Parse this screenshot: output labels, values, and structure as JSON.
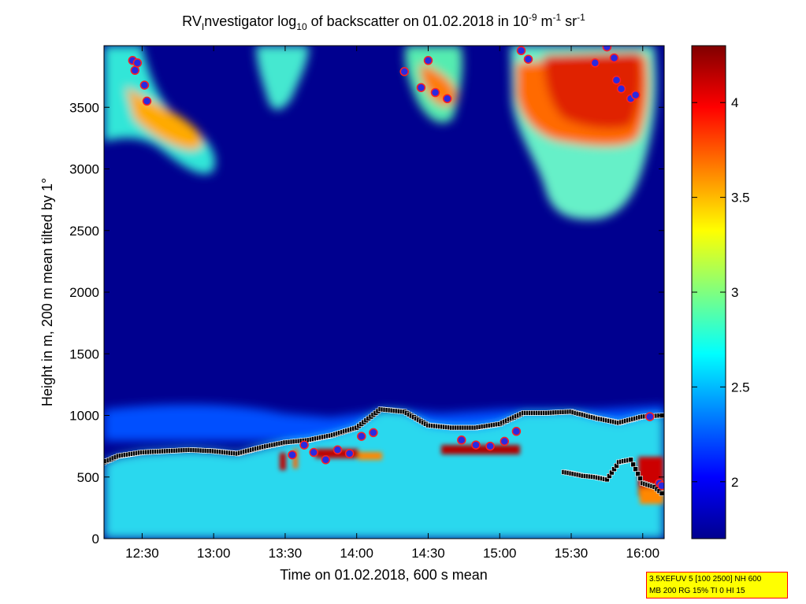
{
  "chart_data": {
    "type": "heatmap",
    "title": {
      "prefix": "RV",
      "sub_after_prefix": "I",
      "mid": "nvestigator log",
      "sub": "10",
      "rest": " of backscatter on 01.02.2018 in 10",
      "sup1": "-9",
      "unit1": " m",
      "sup2": "-1",
      "unit2": " sr",
      "sup3": "-1"
    },
    "xlabel": "Time on 01.02.2018, 600 s mean",
    "ylabel": "Height in m, 200 m mean tilted by 1°",
    "x_range": [
      "12:14",
      "16:09"
    ],
    "x_ticks": [
      "12:30",
      "13:00",
      "13:30",
      "14:00",
      "14:30",
      "15:00",
      "15:30",
      "16:00"
    ],
    "y_range": [
      0,
      4000
    ],
    "y_ticks": [
      0,
      500,
      1000,
      1500,
      2000,
      2500,
      3000,
      3500
    ],
    "colorbar": {
      "range": [
        1.7,
        4.3
      ],
      "ticks": [
        2,
        2.5,
        3,
        3.5,
        4
      ],
      "colormap": "jet"
    },
    "aerosol_layer_top": {
      "x": [
        "12:14",
        "12:20",
        "12:30",
        "12:40",
        "12:50",
        "13:00",
        "13:10",
        "13:20",
        "13:30",
        "13:40",
        "13:50",
        "14:00",
        "14:10",
        "14:20",
        "14:30",
        "14:40",
        "14:50",
        "15:00",
        "15:10",
        "15:20",
        "15:30",
        "15:40",
        "15:50",
        "16:00",
        "16:09"
      ],
      "y": [
        620,
        670,
        700,
        710,
        720,
        710,
        690,
        740,
        780,
        800,
        840,
        900,
        1050,
        1030,
        920,
        900,
        900,
        930,
        1020,
        1020,
        1030,
        980,
        940,
        990,
        1000
      ]
    },
    "lower_layer_marks": {
      "x": [
        "15:27",
        "15:30",
        "15:35",
        "15:40",
        "15:45",
        "15:50",
        "15:55",
        "16:00",
        "16:05",
        "16:09"
      ],
      "y": [
        540,
        530,
        510,
        500,
        480,
        620,
        640,
        450,
        420,
        350
      ]
    },
    "cloud_base_marks": {
      "x": [
        "12:26",
        "12:27",
        "12:28",
        "12:31",
        "12:32",
        "13:33",
        "13:38",
        "13:42",
        "13:47",
        "13:52",
        "13:57",
        "14:02",
        "14:07",
        "14:20",
        "14:27",
        "14:30",
        "14:33",
        "14:38",
        "14:44",
        "14:50",
        "14:56",
        "15:02",
        "15:07",
        "15:09",
        "15:12",
        "15:40",
        "15:45",
        "15:48",
        "15:49",
        "15:51",
        "15:55",
        "15:57",
        "16:03",
        "16:07",
        "16:08"
      ],
      "y": [
        3880,
        3800,
        3860,
        3680,
        3550,
        680,
        760,
        700,
        640,
        720,
        690,
        830,
        860,
        3790,
        3660,
        3880,
        3620,
        3570,
        800,
        760,
        750,
        790,
        870,
        3960,
        3890,
        3860,
        3990,
        3900,
        3720,
        3650,
        3570,
        3600,
        990,
        450,
        430
      ]
    }
  },
  "info_box": {
    "line1": "3.5XEFUV 5 [100 2500] NH 600",
    "line2": "MB 200 RG 15% TI 0 HI 15"
  },
  "colors": {
    "background_field": "#00008f",
    "layer_marker_fill": "#000000",
    "cloud_marker_fill": "#2a2ae0",
    "cloud_marker_outline": "#ff2020"
  }
}
